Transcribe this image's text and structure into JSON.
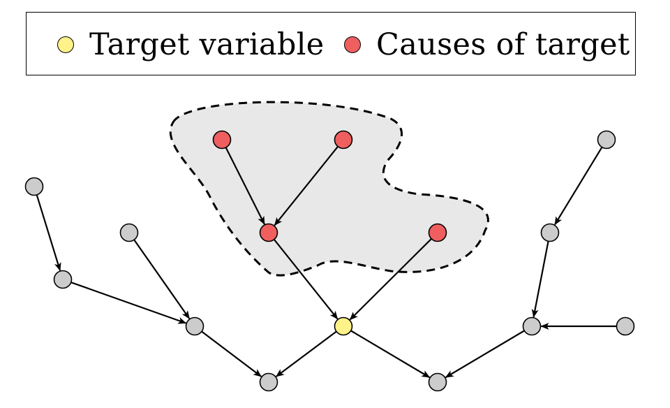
{
  "legend": {
    "items": [
      {
        "label": "Target variable",
        "color": "#fff28a"
      },
      {
        "label": "Causes of target",
        "color": "#ef5f5f"
      }
    ]
  },
  "colors": {
    "cause_node": "#ef5f5f",
    "target_node": "#fff28a",
    "other_node": "#cccccc",
    "region_fill": "#e8e8e8",
    "edge": "#000000"
  },
  "graph": {
    "nodes": [
      {
        "id": "c1",
        "role": "cause"
      },
      {
        "id": "c2",
        "role": "cause"
      },
      {
        "id": "c3",
        "role": "cause"
      },
      {
        "id": "c4",
        "role": "cause"
      },
      {
        "id": "t",
        "role": "target"
      },
      {
        "id": "g1",
        "role": "other"
      },
      {
        "id": "g2",
        "role": "other"
      },
      {
        "id": "g3",
        "role": "other"
      },
      {
        "id": "g4",
        "role": "other"
      },
      {
        "id": "g5",
        "role": "other"
      },
      {
        "id": "g6",
        "role": "other"
      },
      {
        "id": "g7",
        "role": "other"
      },
      {
        "id": "g8",
        "role": "other"
      },
      {
        "id": "g9",
        "role": "other"
      },
      {
        "id": "g10",
        "role": "other"
      }
    ],
    "edges": [
      {
        "from": "c1",
        "to": "c3"
      },
      {
        "from": "c2",
        "to": "c3"
      },
      {
        "from": "c3",
        "to": "t"
      },
      {
        "from": "c4",
        "to": "t"
      },
      {
        "from": "g1",
        "to": "g2"
      },
      {
        "from": "g2",
        "to": "g4"
      },
      {
        "from": "g3",
        "to": "g4"
      },
      {
        "from": "g4",
        "to": "g5"
      },
      {
        "from": "t",
        "to": "g5"
      },
      {
        "from": "t",
        "to": "g6"
      },
      {
        "from": "g7",
        "to": "g6"
      },
      {
        "from": "g8",
        "to": "g7"
      },
      {
        "from": "g9",
        "to": "g8"
      },
      {
        "from": "g10",
        "to": "g7"
      }
    ]
  }
}
